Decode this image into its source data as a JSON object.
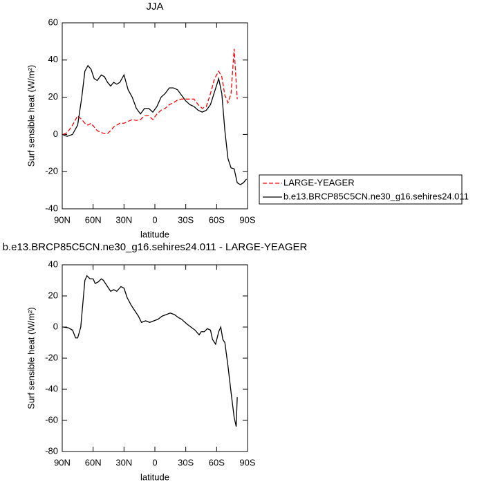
{
  "chart_data": [
    {
      "type": "line",
      "title": "JJA",
      "x_label": "latitude",
      "y_label": "Surf sensible heat (W/m²)",
      "x": [
        89,
        85,
        80,
        75,
        71,
        68,
        65,
        62,
        59,
        56,
        52,
        49,
        46,
        43,
        40,
        37,
        34,
        30,
        26,
        22,
        18,
        14,
        10,
        6,
        2,
        -2,
        -6,
        -10,
        -14,
        -18,
        -22,
        -26,
        -30,
        -34,
        -38,
        -42,
        -46,
        -50,
        -54,
        -58,
        -62,
        -65,
        -68,
        -71,
        -74,
        -77,
        -80,
        -83,
        -86,
        -89
      ],
      "xlim": [
        90,
        -90
      ],
      "xticks": [
        {
          "value": 90,
          "label": "90N"
        },
        {
          "value": 60,
          "label": "60N"
        },
        {
          "value": 30,
          "label": "30N"
        },
        0,
        {
          "value": -30,
          "label": "30S"
        },
        {
          "value": -60,
          "label": "60S"
        },
        {
          "value": -90,
          "label": "90S"
        }
      ],
      "ylim": [
        -40,
        60
      ],
      "yticks": [
        -40,
        -20,
        0,
        20,
        40,
        60
      ],
      "legend": "right",
      "series": [
        {
          "name": "LARGE-YEAGER",
          "color": "#ff0000",
          "style": "dashed",
          "values": [
            0,
            1,
            5,
            10,
            8,
            6,
            5,
            6,
            4,
            2,
            1,
            0.5,
            0.5,
            2,
            4,
            5,
            6,
            6,
            7,
            8,
            7.5,
            8,
            10,
            10,
            8,
            11,
            13,
            14,
            16,
            17,
            18.5,
            19,
            19,
            19,
            19,
            16,
            14,
            15,
            22,
            30,
            34,
            31,
            21,
            17,
            22,
            46,
            19,
            null,
            null,
            null
          ]
        },
        {
          "name": "b.e13.BRCP85C5CN.ne30_g16.sehires24.011",
          "color": "#000000",
          "style": "solid",
          "values": [
            -0.5,
            -1,
            0,
            5,
            20,
            34,
            37,
            35,
            30,
            29,
            32,
            31,
            28,
            26,
            28,
            27,
            28,
            32,
            24,
            20,
            14,
            11,
            14,
            14,
            12,
            15,
            20,
            22,
            25,
            25,
            24,
            21,
            18,
            16,
            15,
            13,
            12,
            13,
            16,
            23,
            30,
            22,
            2,
            -13,
            -18,
            -18.5,
            -26,
            -27,
            -26,
            -24
          ]
        }
      ]
    },
    {
      "type": "line",
      "title": "b.e13.BRCP85C5CN.ne30_g16.sehires24.011 - LARGE-YEAGER",
      "x_label": "latitude",
      "y_label": "Surf sensible heat (W/m²)",
      "x": [
        89,
        84,
        80,
        77,
        75,
        72,
        70,
        68,
        66,
        63,
        60,
        58,
        55,
        52,
        50,
        46,
        43,
        40,
        37,
        33,
        30,
        27,
        23,
        19,
        16,
        13,
        9,
        5,
        1,
        -3,
        -7,
        -11,
        -15,
        -19,
        -23,
        -26,
        -31,
        -35,
        -39,
        -43,
        -45,
        -48,
        -51,
        -54,
        -56,
        -59,
        -62,
        -64,
        -66,
        -68,
        -71,
        -74,
        -77,
        -79,
        -80
      ],
      "xlim": [
        90,
        -90
      ],
      "xticks": [
        {
          "value": 90,
          "label": "90N"
        },
        {
          "value": 60,
          "label": "60N"
        },
        {
          "value": 30,
          "label": "30N"
        },
        0,
        {
          "value": -30,
          "label": "30S"
        },
        {
          "value": -60,
          "label": "60S"
        },
        {
          "value": -90,
          "label": "90S"
        }
      ],
      "ylim": [
        -80,
        40
      ],
      "yticks": [
        -80,
        -60,
        -40,
        -20,
        0,
        20,
        40
      ],
      "series": [
        {
          "color": "#000000",
          "style": "solid",
          "values": [
            0,
            -0.5,
            -2,
            -7,
            -7,
            0,
            15,
            30,
            33,
            31,
            31,
            28,
            29,
            31,
            30,
            26,
            23,
            24,
            23,
            26,
            25,
            19,
            14,
            10,
            7,
            3,
            4,
            3,
            4,
            5,
            7,
            8,
            9,
            8,
            6,
            5,
            2,
            0,
            -2,
            -5,
            -3,
            -3,
            -1,
            -2,
            -8,
            -11,
            -3,
            0,
            -8,
            -10,
            -25,
            -42,
            -58,
            -64,
            -45
          ]
        }
      ]
    }
  ]
}
